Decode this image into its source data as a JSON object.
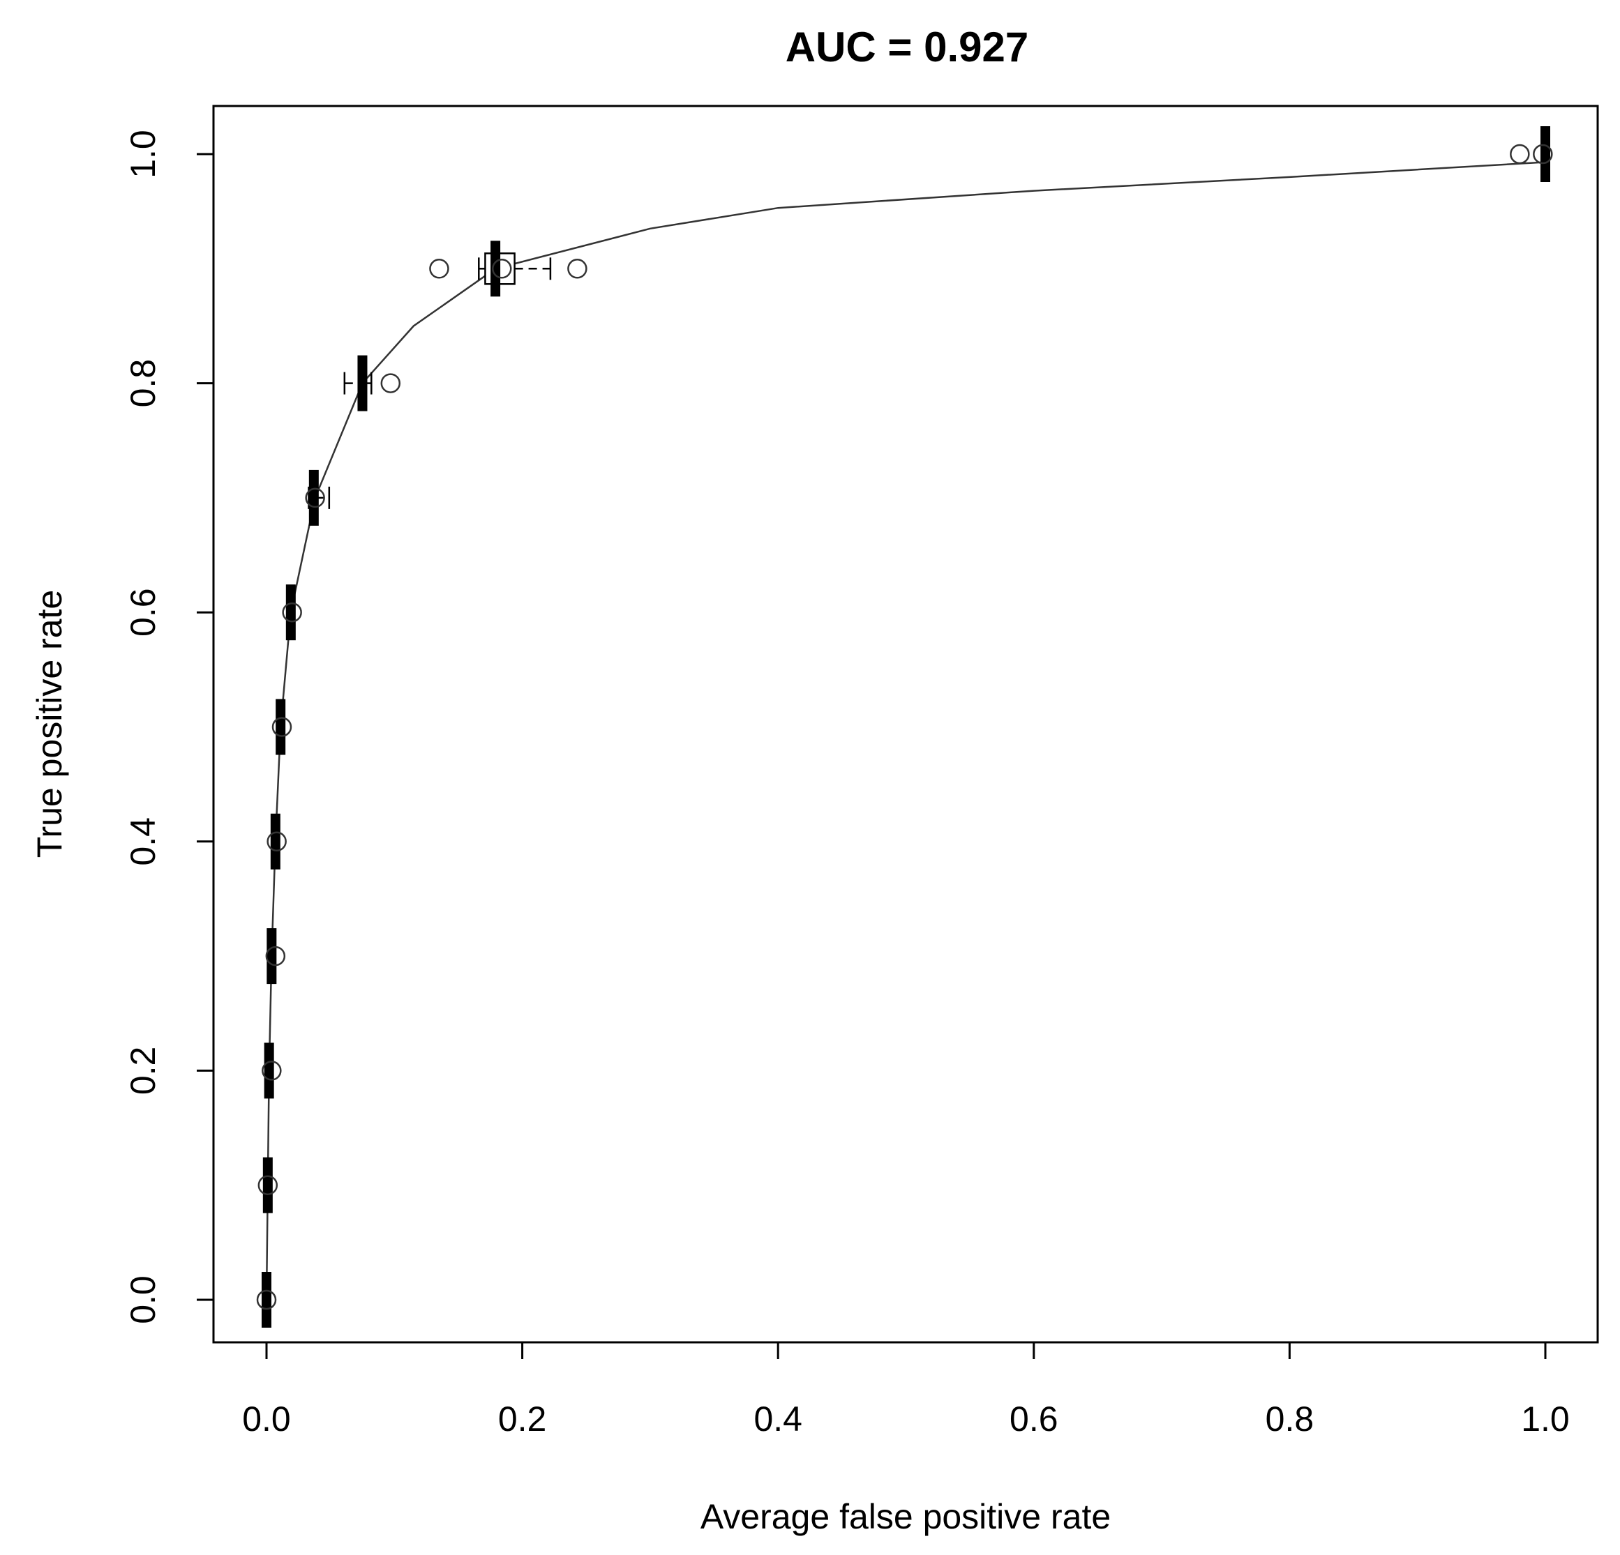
{
  "chart_data": {
    "type": "line",
    "title": "AUC = 0.927",
    "xlabel": "Average false positive rate",
    "ylabel": "True positive rate",
    "xlim": [
      0,
      1
    ],
    "ylim": [
      0,
      1
    ],
    "x_ticks": [
      "0.0",
      "0.2",
      "0.4",
      "0.6",
      "0.8",
      "1.0"
    ],
    "y_ticks": [
      "0.0",
      "0.2",
      "0.4",
      "0.6",
      "0.8",
      "1.0"
    ],
    "grid": false,
    "legend": "none",
    "series": [
      {
        "values": [
          {
            "x": 0.0,
            "y": 0.0
          },
          {
            "x": 0.001,
            "y": 0.1
          },
          {
            "x": 0.002,
            "y": 0.2
          },
          {
            "x": 0.004,
            "y": 0.3
          },
          {
            "x": 0.007,
            "y": 0.4
          },
          {
            "x": 0.011,
            "y": 0.5
          },
          {
            "x": 0.019,
            "y": 0.6
          },
          {
            "x": 0.038,
            "y": 0.7
          },
          {
            "x": 0.075,
            "y": 0.8
          },
          {
            "x": 0.115,
            "y": 0.85
          },
          {
            "x": 0.179,
            "y": 0.9
          },
          {
            "x": 0.3,
            "y": 0.935
          },
          {
            "x": 0.4,
            "y": 0.953
          },
          {
            "x": 0.6,
            "y": 0.968
          },
          {
            "x": 0.8,
            "y": 0.98
          },
          {
            "x": 1.0,
            "y": 0.993
          }
        ]
      }
    ],
    "boxplots": [
      {
        "y": 0.0,
        "whisker_low": 0.0,
        "q1": 0.0,
        "median": 0.0,
        "q3": 0.0,
        "whisker_high": 0.0,
        "outliers": [
          0.0
        ]
      },
      {
        "y": 0.1,
        "whisker_low": 0.0,
        "q1": 0.0,
        "median": 0.001,
        "q3": 0.002,
        "whisker_high": 0.003,
        "outliers": [
          0.001
        ]
      },
      {
        "y": 0.2,
        "whisker_low": 0.0,
        "q1": 0.001,
        "median": 0.002,
        "q3": 0.003,
        "whisker_high": 0.004,
        "outliers": [
          0.004
        ]
      },
      {
        "y": 0.3,
        "whisker_low": 0.002,
        "q1": 0.003,
        "median": 0.004,
        "q3": 0.005,
        "whisker_high": 0.006,
        "outliers": [
          0.007
        ]
      },
      {
        "y": 0.4,
        "whisker_low": 0.005,
        "q1": 0.006,
        "median": 0.007,
        "q3": 0.008,
        "whisker_high": 0.009,
        "outliers": [
          0.008
        ]
      },
      {
        "y": 0.5,
        "whisker_low": 0.009,
        "q1": 0.01,
        "median": 0.011,
        "q3": 0.012,
        "whisker_high": 0.013,
        "outliers": [
          0.012
        ]
      },
      {
        "y": 0.6,
        "whisker_low": 0.016,
        "q1": 0.017,
        "median": 0.019,
        "q3": 0.02,
        "whisker_high": 0.021,
        "outliers": [
          0.02
        ]
      },
      {
        "y": 0.7,
        "whisker_low": 0.033,
        "q1": 0.035,
        "median": 0.037,
        "q3": 0.039,
        "whisker_high": 0.049,
        "outliers": [
          0.038
        ]
      },
      {
        "y": 0.8,
        "whisker_low": 0.061,
        "q1": 0.072,
        "median": 0.075,
        "q3": 0.078,
        "whisker_high": 0.082,
        "outliers": [
          0.097
        ]
      },
      {
        "y": 0.9,
        "whisker_low": 0.166,
        "q1": 0.171,
        "median": 0.179,
        "q3": 0.194,
        "whisker_high": 0.222,
        "outliers": [
          0.135,
          0.184,
          0.243
        ]
      },
      {
        "y": 1.0,
        "whisker_low": 0.999,
        "q1": 0.999,
        "median": 1.0,
        "q3": 1.0,
        "whisker_high": 1.0,
        "outliers": [
          0.98,
          0.998
        ]
      }
    ]
  }
}
